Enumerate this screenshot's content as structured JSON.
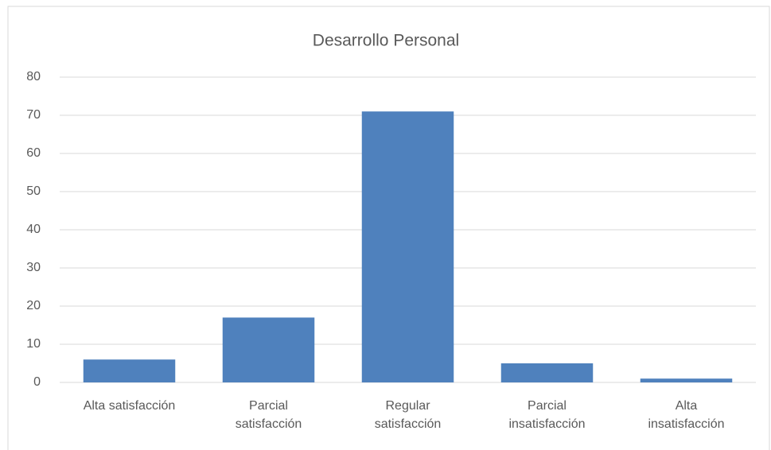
{
  "chart_data": {
    "type": "bar",
    "title": "Desarrollo Personal",
    "categories": [
      "Alta satisfacción",
      "Parcial\nsatisfacción",
      "Regular\nsatisfacción",
      "Parcial\ninsatisfacción",
      "Alta\ninsatisfacción"
    ],
    "values": [
      6,
      17,
      71,
      5,
      1
    ],
    "color": "#4f81bd",
    "ylim": [
      0,
      80
    ],
    "yticks": [
      0,
      10,
      20,
      30,
      40,
      50,
      60,
      70,
      80
    ],
    "grid": true
  }
}
